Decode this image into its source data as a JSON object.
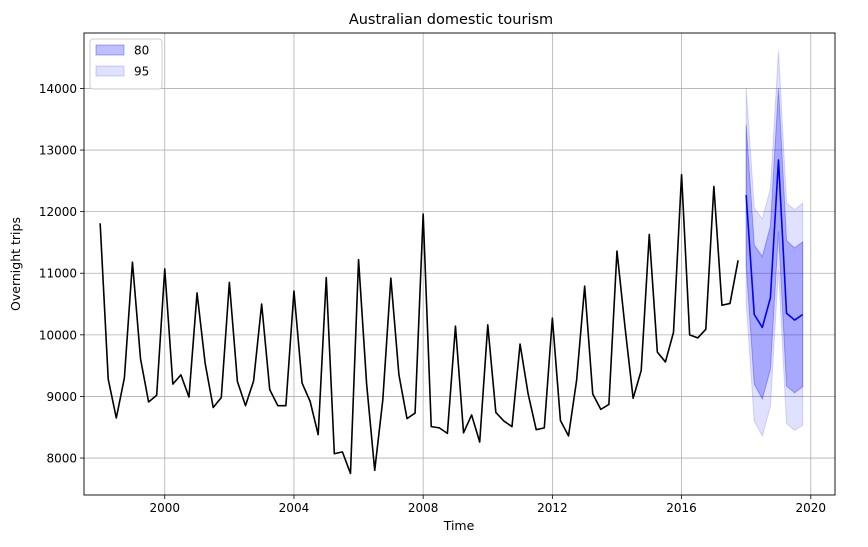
{
  "chart_data": {
    "type": "line",
    "title": "Australian domestic tourism",
    "xlabel": "Time",
    "ylabel": "Overnight trips",
    "xlim": [
      1997.5,
      2020.75
    ],
    "ylim": [
      7400,
      14900
    ],
    "xticks": [
      2000,
      2004,
      2008,
      2012,
      2016,
      2020
    ],
    "yticks": [
      8000,
      9000,
      10000,
      11000,
      12000,
      13000,
      14000
    ],
    "grid": true,
    "legend": {
      "placement": "top-left",
      "entries": [
        {
          "label": "80",
          "color": "#0000ff",
          "opacity": 0.25
        },
        {
          "label": "95",
          "color": "#0000ff",
          "opacity": 0.12
        }
      ]
    },
    "series": [
      {
        "color": "#000000",
        "x": [
          1998.0,
          1998.25,
          1998.5,
          1998.75,
          1999.0,
          1999.25,
          1999.5,
          1999.75,
          2000.0,
          2000.25,
          2000.5,
          2000.75,
          2001.0,
          2001.25,
          2001.5,
          2001.75,
          2002.0,
          2002.25,
          2002.5,
          2002.75,
          2003.0,
          2003.25,
          2003.5,
          2003.75,
          2004.0,
          2004.25,
          2004.5,
          2004.75,
          2005.0,
          2005.25,
          2005.5,
          2005.75,
          2006.0,
          2006.25,
          2006.5,
          2006.75,
          2007.0,
          2007.25,
          2007.5,
          2007.75,
          2008.0,
          2008.25,
          2008.5,
          2008.75,
          2009.0,
          2009.25,
          2009.5,
          2009.75,
          2010.0,
          2010.25,
          2010.5,
          2010.75,
          2011.0,
          2011.25,
          2011.5,
          2011.75,
          2012.0,
          2012.25,
          2012.5,
          2012.75,
          2013.0,
          2013.25,
          2013.5,
          2013.75,
          2014.0,
          2014.25,
          2014.5,
          2014.75,
          2015.0,
          2015.25,
          2015.5,
          2015.75,
          2016.0,
          2016.25,
          2016.5,
          2016.75,
          2017.0,
          2017.25,
          2017.5,
          2017.75
        ],
        "y": [
          11810,
          9280,
          8650,
          9300,
          11180,
          9610,
          8910,
          9020,
          11070,
          9200,
          9350,
          8990,
          10680,
          9540,
          8820,
          8980,
          10850,
          9240,
          8850,
          9250,
          10500,
          9110,
          8850,
          8850,
          10710,
          9220,
          8920,
          8380,
          10930,
          8070,
          8100,
          7750,
          11220,
          9200,
          7800,
          8940,
          10920,
          9350,
          8640,
          8730,
          11960,
          8510,
          8490,
          8400,
          10140,
          8410,
          8700,
          8260,
          10160,
          8740,
          8600,
          8510,
          9850,
          9040,
          8460,
          8490,
          10270,
          8610,
          8360,
          9260,
          10790,
          9040,
          8790,
          8870,
          11360,
          10120,
          8970,
          9420,
          11630,
          9720,
          9560,
          10040,
          12600,
          10000,
          9950,
          10090,
          12410,
          10480,
          10510,
          11210
        ]
      },
      {
        "color": "#0000ff",
        "x": [
          2018.0,
          2018.25,
          2018.5,
          2018.75,
          2019.0,
          2019.25,
          2019.5,
          2019.75
        ],
        "y": [
          12270,
          10330,
          10120,
          10600,
          12840,
          10350,
          10240,
          10330
        ],
        "band80": {
          "lower": [
            11130,
            9200,
            8960,
            9440,
            11680,
            9170,
            9060,
            9160
          ],
          "upper": [
            13410,
            11460,
            11270,
            11760,
            14000,
            11530,
            11410,
            11510
          ]
        },
        "band95": {
          "lower": [
            10520,
            8600,
            8360,
            8840,
            11060,
            8560,
            8450,
            8530
          ],
          "upper": [
            14010,
            12060,
            11880,
            12370,
            14610,
            12140,
            12030,
            12140
          ]
        }
      }
    ]
  }
}
